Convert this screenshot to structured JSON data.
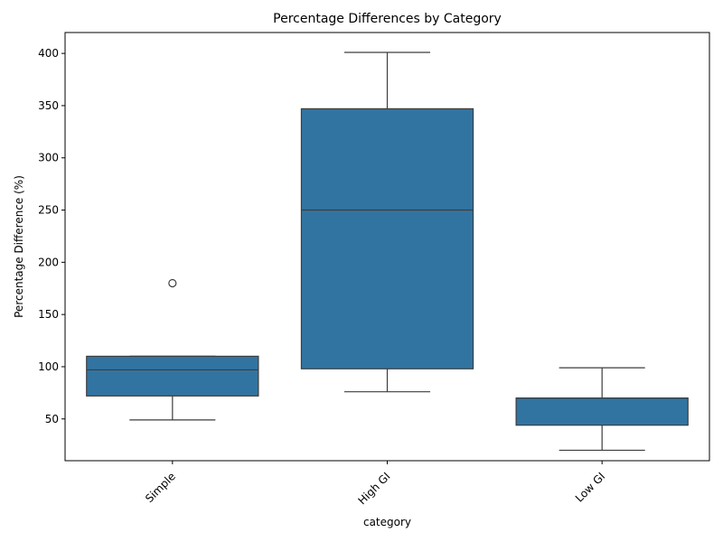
{
  "chart_data": {
    "type": "box",
    "title": "Percentage Differences by Category",
    "xlabel": "category",
    "ylabel": "Percentage Difference (%)",
    "categories": [
      "Simple",
      "High GI",
      "Low GI"
    ],
    "box_color": "#3274a1",
    "line_color": "#3d3d3d",
    "ylim": [
      10,
      420
    ],
    "yticks": [
      50,
      100,
      150,
      200,
      250,
      300,
      350,
      400
    ],
    "x_tick_rotation": 45,
    "grid": false,
    "series": [
      {
        "category": "Simple",
        "whisker_low": 49,
        "q1": 72,
        "median": 97,
        "q3": 110,
        "whisker_high": 110,
        "outliers": [
          180
        ]
      },
      {
        "category": "High GI",
        "whisker_low": 76,
        "q1": 98,
        "median": 250,
        "q3": 347,
        "whisker_high": 401,
        "outliers": []
      },
      {
        "category": "Low GI",
        "whisker_low": 20,
        "q1": 44,
        "median": 70,
        "q3": 70,
        "whisker_high": 99,
        "outliers": []
      }
    ]
  }
}
